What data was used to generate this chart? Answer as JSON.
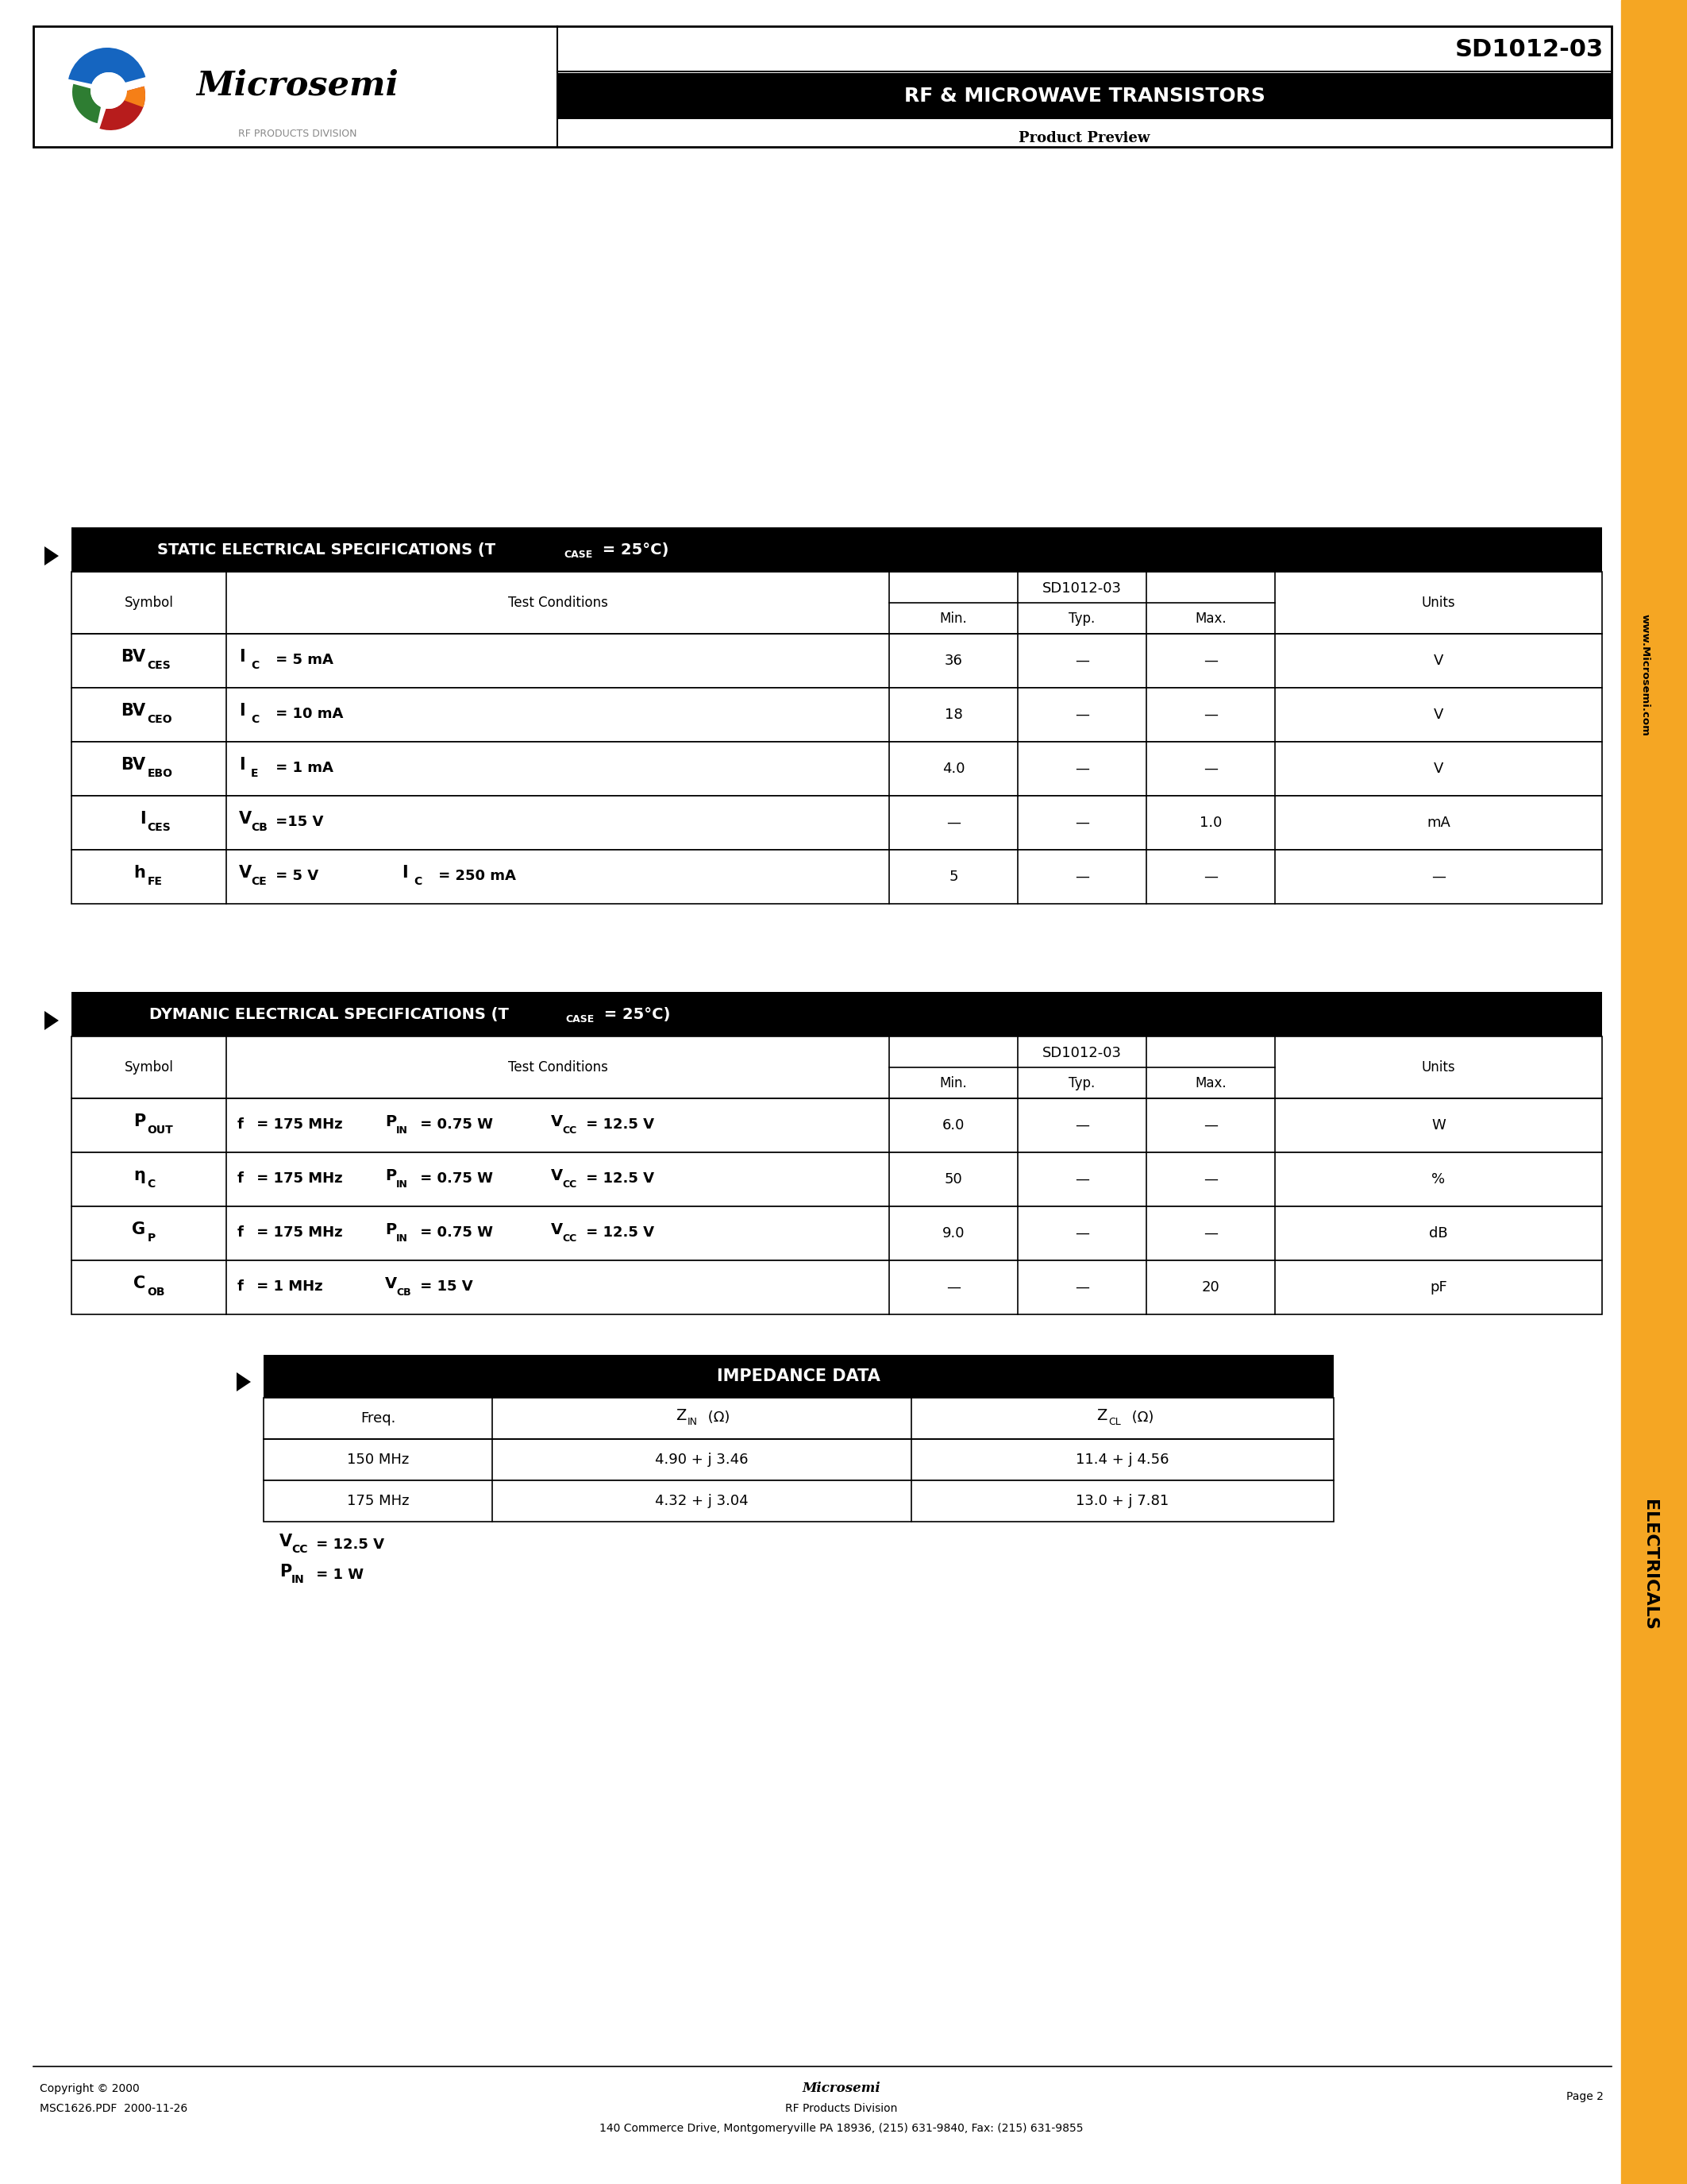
{
  "page_bg": "#ffffff",
  "orange_color": "#F5A623",
  "header_part_number": "SD1012-03",
  "header_title": "RF & MICROWAVE TRANSISTORS",
  "header_subtitle": "Product Preview",
  "footer_copyright": "Copyright © 2000",
  "footer_file": "MSC1626.PDF  2000-11-26",
  "footer_company": "Microsemi",
  "footer_division": "RF Products Division",
  "footer_address": "140 Commerce Drive, Montgomeryville PA 18936, (215) 631-9840, Fax: (215) 631-9855",
  "footer_page": "Page 2",
  "static_rows": [
    [
      "BV",
      "CES",
      "I",
      "C",
      " = 5 mA",
      "",
      "",
      "",
      "36",
      "—",
      "—",
      "V"
    ],
    [
      "BV",
      "CEO",
      "I",
      "C",
      " = 10 mA",
      "",
      "",
      "",
      "18",
      "—",
      "—",
      "V"
    ],
    [
      "BV",
      "EBO",
      "I",
      "E",
      " = 1 mA",
      "",
      "",
      "",
      "4.0",
      "—",
      "—",
      "V"
    ],
    [
      "I",
      "CES",
      "V",
      "CB",
      " =15 V",
      "",
      "",
      "",
      "—",
      "—",
      "1.0",
      "mA"
    ],
    [
      "h",
      "FE",
      "V",
      "CE",
      " = 5 V",
      "I",
      "C",
      " = 250 mA",
      "5",
      "—",
      "—",
      "—"
    ]
  ],
  "dynamic_rows": [
    [
      "P",
      "OUT",
      "f",
      " = 175 MHz",
      "P",
      "IN",
      " = 0.75 W",
      "V",
      "CC",
      " = 12.5 V",
      "6.0",
      "—",
      "—",
      "W"
    ],
    [
      "η",
      "C",
      "f",
      " = 175 MHz",
      "P",
      "IN",
      " = 0.75 W",
      "V",
      "CC",
      " = 12.5 V",
      "50",
      "—",
      "—",
      "%"
    ],
    [
      "G",
      "P",
      "f",
      " = 175 MHz",
      "P",
      "IN",
      " = 0.75 W",
      "V",
      "CC",
      " = 12.5 V",
      "9.0",
      "—",
      "—",
      "dB"
    ],
    [
      "C",
      "OB",
      "f",
      " = 1 MHz",
      "V",
      "CB",
      " = 15 V",
      "",
      "",
      "",
      "—",
      "—",
      "20",
      "pF"
    ]
  ],
  "imp_rows": [
    [
      "150 MHz",
      "4.90 + j 3.46",
      "11.4 + j 4.56"
    ],
    [
      "175 MHz",
      "4.32 + j 3.04",
      "13.0 + j 7.81"
    ]
  ]
}
